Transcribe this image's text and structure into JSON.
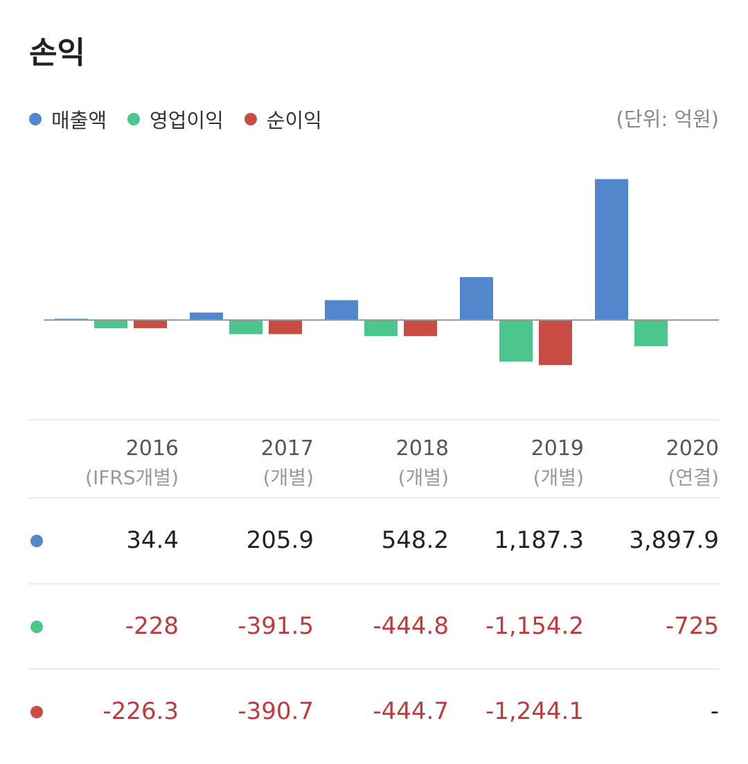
{
  "title": "손익",
  "unit": "(단위: 억원)",
  "colors": {
    "revenue": "#5387cc",
    "operating": "#4cc68c",
    "net": "#c84b44",
    "negative_text": "#c0393b"
  },
  "legend": [
    {
      "label": "매출액",
      "color": "#5387cc"
    },
    {
      "label": "영업이익",
      "color": "#4cc68c"
    },
    {
      "label": "순이익",
      "color": "#c84b44"
    }
  ],
  "columns": [
    {
      "year": "2016",
      "sub": "(IFRS개별)"
    },
    {
      "year": "2017",
      "sub": "(개별)"
    },
    {
      "year": "2018",
      "sub": "(개별)"
    },
    {
      "year": "2019",
      "sub": "(개별)"
    },
    {
      "year": "2020",
      "sub": "(연결)"
    }
  ],
  "rows": [
    {
      "color": "#5387cc",
      "values": [
        "34.4",
        "205.9",
        "548.2",
        "1,187.3",
        "3,897.9"
      ]
    },
    {
      "color": "#4cc68c",
      "values": [
        "-228",
        "-391.5",
        "-444.8",
        "-1,154.2",
        "-725"
      ]
    },
    {
      "color": "#c84b44",
      "values": [
        "-226.3",
        "-390.7",
        "-444.7",
        "-1,244.1",
        "-"
      ]
    }
  ],
  "chart_data": {
    "type": "bar",
    "categories": [
      "2016",
      "2017",
      "2018",
      "2019",
      "2020"
    ],
    "series": [
      {
        "name": "매출액",
        "values": [
          34.4,
          205.9,
          548.2,
          1187.3,
          3897.9
        ]
      },
      {
        "name": "영업이익",
        "values": [
          -228,
          -391.5,
          -444.8,
          -1154.2,
          -725
        ]
      },
      {
        "name": "순이익",
        "values": [
          -226.3,
          -390.7,
          -444.7,
          -1244.1,
          null
        ]
      }
    ],
    "ylim": [
      -2000,
      4000
    ],
    "grid": false,
    "legend_position": "top-left"
  }
}
